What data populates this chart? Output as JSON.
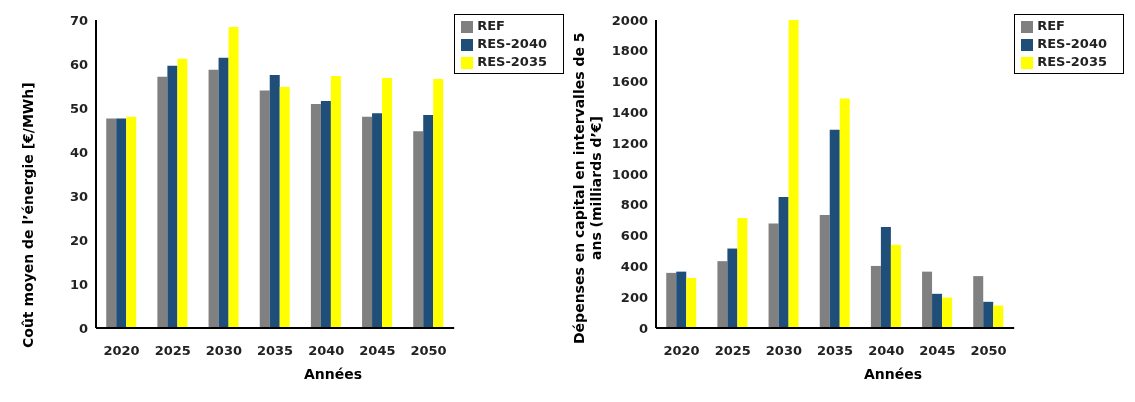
{
  "chart_data": [
    {
      "type": "bar",
      "ylabel": "Coût moyen de l’énergie [€/MWh]",
      "xlabel": "Années",
      "categories": [
        "2020",
        "2025",
        "2030",
        "2035",
        "2040",
        "2045",
        "2050"
      ],
      "series": [
        {
          "name": "REF",
          "color": "#808080",
          "values": [
            47.6,
            57.1,
            58.7,
            54.0,
            50.9,
            48.0,
            44.7
          ]
        },
        {
          "name": "RES-2040",
          "color": "#1f4e79",
          "values": [
            47.6,
            59.6,
            61.4,
            57.5,
            51.6,
            48.8,
            48.4
          ]
        },
        {
          "name": "RES-2035",
          "color": "#ffff00",
          "values": [
            48.0,
            61.2,
            68.4,
            54.8,
            57.3,
            56.8,
            56.6
          ]
        }
      ],
      "ylim": [
        0,
        70
      ],
      "yticks": [
        0,
        10,
        20,
        30,
        40,
        50,
        60,
        70
      ],
      "grid": false,
      "legend": "top right"
    },
    {
      "type": "bar",
      "ylabel": "Dépenses en capital en intervalles de 5 ans (milliards d’€]",
      "xlabel": "Années",
      "categories": [
        "2020",
        "2025",
        "2030",
        "2035",
        "2040",
        "2045",
        "2050"
      ],
      "series": [
        {
          "name": "REF",
          "color": "#808080",
          "values": [
            358,
            434,
            679,
            733,
            403,
            366,
            337
          ]
        },
        {
          "name": "RES-2040",
          "color": "#1f4e79",
          "values": [
            366,
            516,
            851,
            1288,
            656,
            222,
            170
          ]
        },
        {
          "name": "RES-2035",
          "color": "#ffff00",
          "values": [
            325,
            715,
            2000,
            1491,
            540,
            198,
            146
          ]
        }
      ],
      "ylim": [
        0,
        2000
      ],
      "yticks": [
        0,
        200,
        400,
        600,
        800,
        1000,
        1200,
        1400,
        1600,
        1800,
        2000
      ],
      "grid": false,
      "legend": "top right"
    }
  ]
}
